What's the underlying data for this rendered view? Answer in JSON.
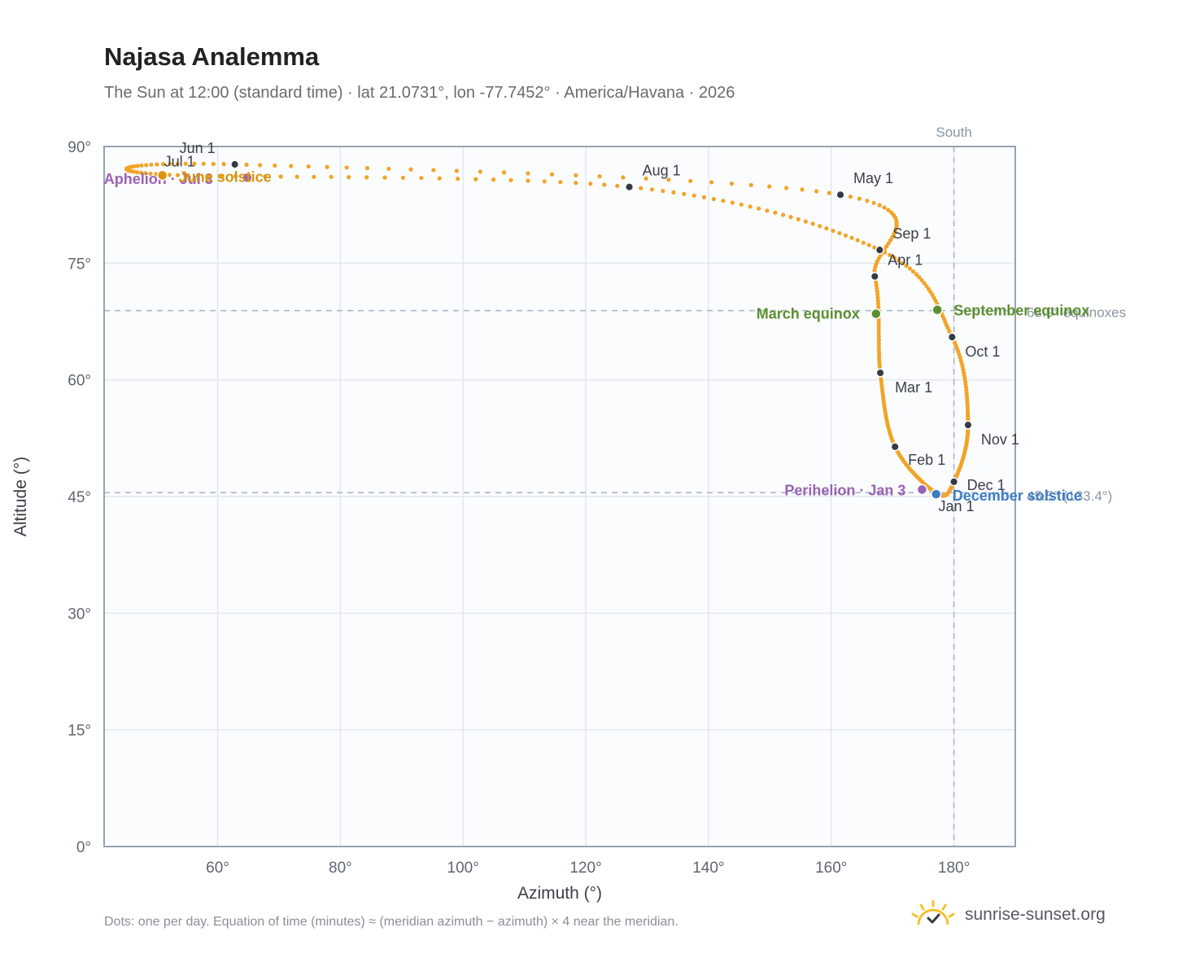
{
  "header": {
    "title": "Najasa Analemma",
    "subtitle": "The Sun at 12:00 (standard time) · lat 21.0731°, lon -77.7452° · America/Havana · 2026"
  },
  "footer": {
    "note": "Dots: one per day. Equation of time (minutes) ≈ (meridian azimuth − azimuth) × 4 near the meridian.",
    "brand": "sunrise-sunset.org",
    "brand_icon": "sun-logo-icon"
  },
  "colors": {
    "path": "#f2a427",
    "month_dot": "#343b46",
    "equinox": "#5b8f2f",
    "aphelion_perihelion": "#9a62b5",
    "december_solstice": "#3d7ec2",
    "june_solstice": "#d8950f",
    "reference_line": "#a8b3c2",
    "plot_bg": "#fafcfe",
    "grid": "#e2e8ef",
    "frame": "#97a3b2"
  },
  "chart_data": {
    "type": "scatter",
    "xlabel": "Azimuth (°)",
    "ylabel": "Altitude (°)",
    "xlim": [
      41.5,
      190
    ],
    "ylim": [
      0,
      90
    ],
    "xticks": [
      60,
      80,
      100,
      120,
      140,
      160,
      180
    ],
    "xtick_labels": [
      "60°",
      "80°",
      "100°",
      "120°",
      "140°",
      "160°",
      "180°"
    ],
    "yticks": [
      0,
      15,
      30,
      45,
      60,
      75,
      90
    ],
    "ytick_labels": [
      "0°",
      "15°",
      "30°",
      "45°",
      "60°",
      "75°",
      "90°"
    ],
    "grid": true,
    "meridian": {
      "azimuth": 180,
      "label": "South"
    },
    "reference_lines": [
      {
        "altitude": 68.9,
        "label": "68.9° equinoxes"
      },
      {
        "altitude": 45.5,
        "label": "45.5° (Dec)"
      }
    ],
    "december_altitude_note": "45.5° (133.4°)",
    "month_markers": [
      {
        "label": "Jan 1",
        "azimuth": 177.2,
        "altitude": 45.4
      },
      {
        "label": "Feb 1",
        "azimuth": 170.4,
        "altitude": 51.4
      },
      {
        "label": "Mar 1",
        "azimuth": 168.0,
        "altitude": 60.9
      },
      {
        "label": "Apr 1",
        "azimuth": 167.1,
        "altitude": 73.3
      },
      {
        "label": "May 1",
        "azimuth": 161.5,
        "altitude": 83.8
      },
      {
        "label": "Jun 1",
        "azimuth": 62.8,
        "altitude": 87.7
      },
      {
        "label": "Jul 1",
        "azimuth": 51.0,
        "altitude": 86.4
      },
      {
        "label": "Aug 1",
        "azimuth": 127.1,
        "altitude": 84.8
      },
      {
        "label": "Sep 1",
        "azimuth": 167.9,
        "altitude": 76.7
      },
      {
        "label": "Oct 1",
        "azimuth": 179.7,
        "altitude": 65.5
      },
      {
        "label": "Nov 1",
        "azimuth": 182.3,
        "altitude": 54.2
      },
      {
        "label": "Dec 1",
        "azimuth": 180.0,
        "altitude": 46.9
      }
    ],
    "events": [
      {
        "label": "March equinox",
        "azimuth": 167.3,
        "altitude": 68.5,
        "kind": "equinox"
      },
      {
        "label": "September equinox",
        "azimuth": 177.3,
        "altitude": 69.0,
        "kind": "equinox"
      },
      {
        "label": "Perihelion · Jan 3",
        "azimuth": 174.8,
        "altitude": 45.9,
        "kind": "apsis"
      },
      {
        "label": "Aphelion · Jul 3",
        "azimuth": 64.8,
        "altitude": 86.0,
        "kind": "apsis"
      },
      {
        "label": "December solstice",
        "azimuth": 177.1,
        "altitude": 45.3,
        "kind": "december"
      },
      {
        "label": "June solstice",
        "azimuth": 51.0,
        "altitude": 86.3,
        "kind": "june"
      }
    ]
  }
}
